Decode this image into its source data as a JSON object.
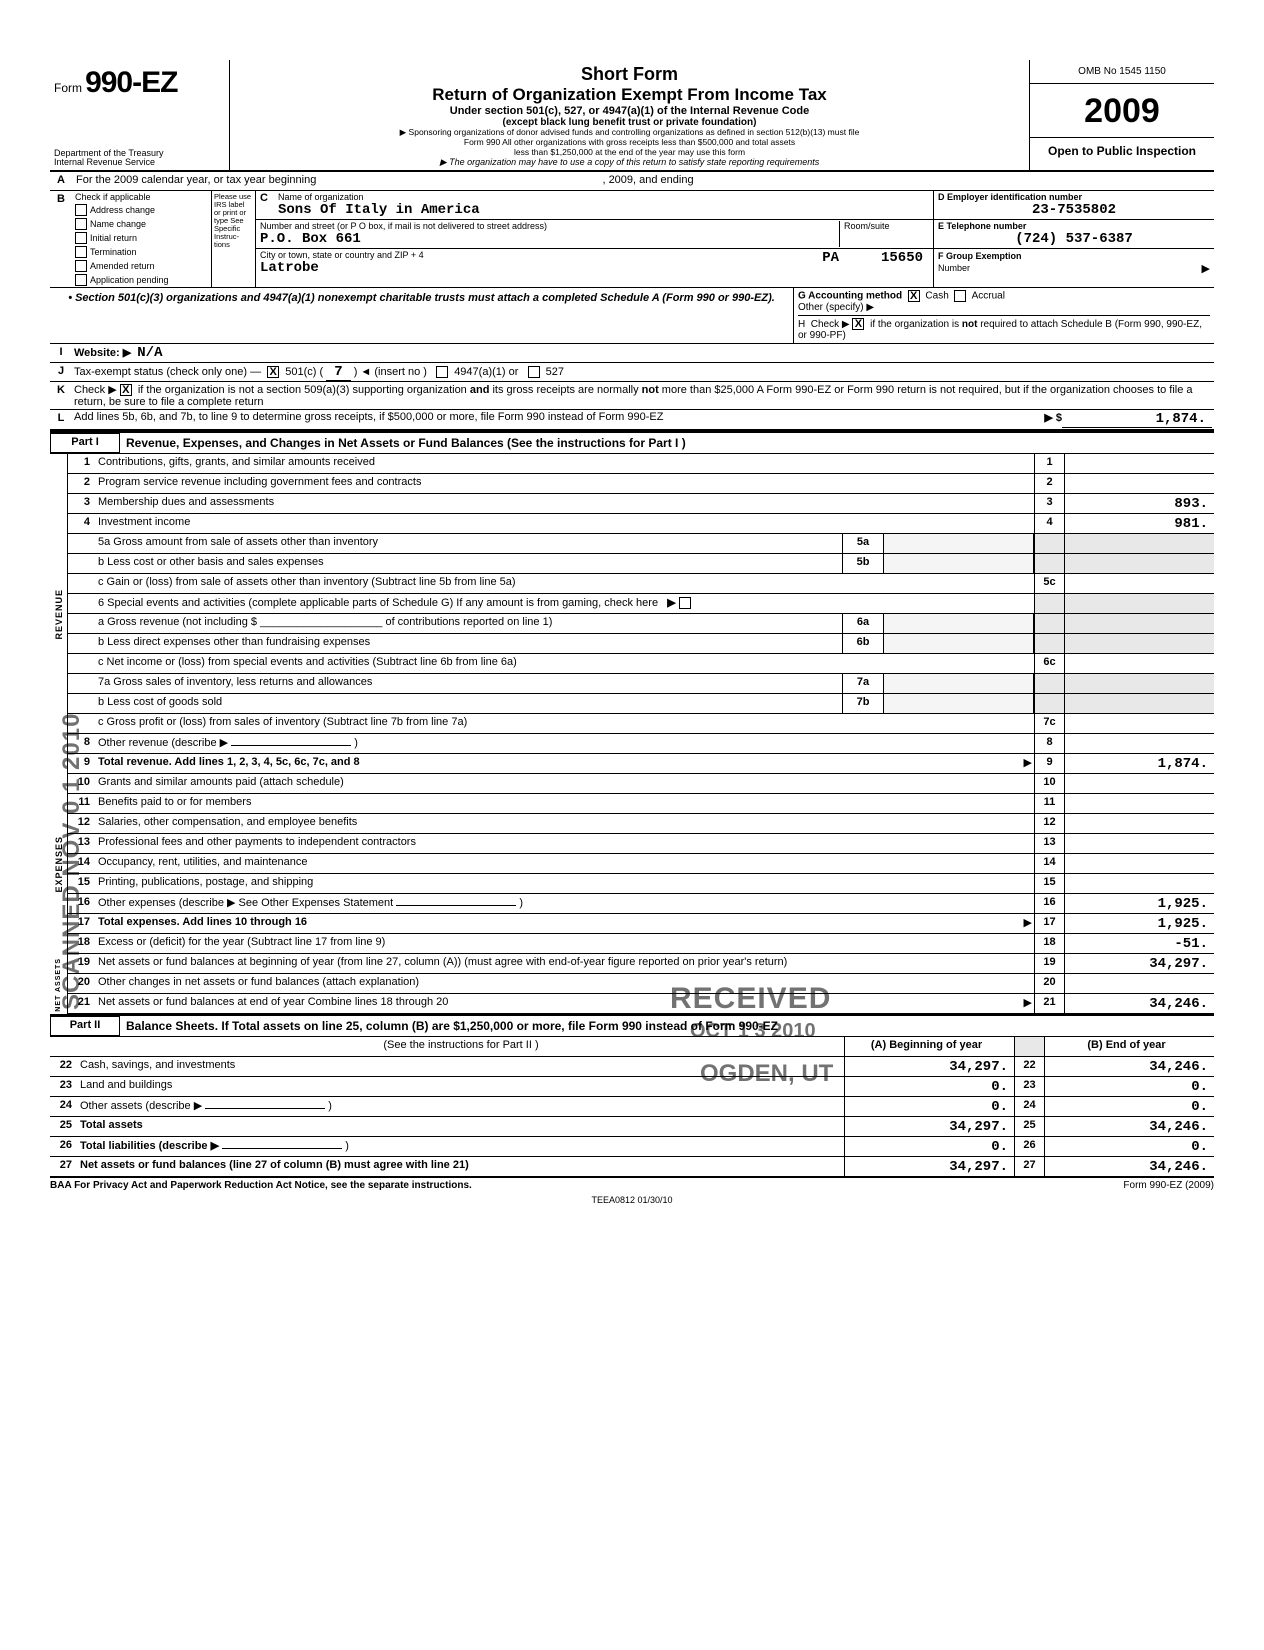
{
  "header": {
    "omb": "OMB No 1545 1150",
    "form_prefix": "Form",
    "form_no": "990-EZ",
    "dept1": "Department of the Treasury",
    "dept2": "Internal Revenue Service",
    "title1": "Short Form",
    "title2": "Return of Organization Exempt From Income Tax",
    "title3": "Under section 501(c), 527, or 4947(a)(1) of the Internal Revenue Code",
    "title4": "(except black lung benefit trust or private foundation)",
    "note1": "▶ Sponsoring organizations of donor advised funds and controlling organizations as defined in section 512(b)(13) must file",
    "note2": "Form 990  All other organizations with gross receipts less than $500,000 and total assets",
    "note3": "less than $1,250,000 at the end of the year may use this form",
    "note4": "▶ The organization may have to use a copy of this return to satisfy state reporting requirements",
    "year": "2009",
    "open": "Open to Public Inspection"
  },
  "lineA": {
    "label": "A",
    "text": "For the 2009 calendar year, or tax year beginning",
    "mid": ", 2009, and ending"
  },
  "blockB": {
    "label": "B",
    "chk_title": "Check if applicable",
    "please": "Please use IRS label or print or type See Specific Instruc-tions",
    "chks": [
      "Address change",
      "Name change",
      "Initial return",
      "Termination",
      "Amended return",
      "Application pending"
    ],
    "c_label": "C",
    "c_name_lab": "Name of organization",
    "c_name": "Sons Of Italy in America",
    "c_addr_lab": "Number and street (or P O  box, if mail is not delivered to street address)",
    "c_room_lab": "Room/suite",
    "c_addr": "P.O. Box 661",
    "c_city_lab": "City or town, state or country  and ZIP + 4",
    "c_city": "Latrobe",
    "c_state": "PA",
    "c_zip": "15650",
    "d_lab": "D  Employer identification number",
    "d_val": "23-7535802",
    "e_lab": "E  Telephone number",
    "e_val": "(724) 537-6387",
    "f_lab": "F  Group Exemption",
    "f_lab2": "Number",
    "f_arrow": "▶"
  },
  "gh": {
    "schedA": "• Section 501(c)(3) organizations and 4947(a)(1) nonexempt charitable trusts must attach a completed Schedule A (Form 990 or 990-EZ).",
    "g_lab": "G  Accounting method",
    "g_cash": "Cash",
    "g_accr": "Accrual",
    "g_other": "Other (specify) ▶",
    "h_text": "H  Check ▶       if the organization is not required to attach Schedule B (Form 990, 990-EZ, or 990-PF)"
  },
  "lineI": {
    "label": "I",
    "text": "Website: ▶",
    "val": "N/A"
  },
  "lineJ": {
    "label": "J",
    "text": "Tax-exempt status (check only one) —",
    "c501": "501(c) (",
    "num": "7",
    "ins": ") ◄ (insert no )",
    "or1": "4947(a)(1) or",
    "or2": "527"
  },
  "lineK": {
    "label": "K",
    "text": "Check ▶       if the organization is not a section 509(a)(3) supporting organization and its gross receipts are normally not more than $25,000   A Form 990-EZ or Form 990 return is not required, but if the organization chooses to file a return, be sure to file a complete return"
  },
  "lineL": {
    "label": "L",
    "text": "Add lines 5b, 6b, and 7b, to line 9 to determine gross receipts, if $500,000 or more, file Form 990 instead of Form 990-EZ",
    "arrow": "▶ $",
    "val": "1,874."
  },
  "part1": {
    "label": "Part I",
    "title": "Revenue, Expenses, and Changes in Net Assets or Fund Balances (See the instructions for Part I )",
    "rev_label": "REVENUE",
    "exp_label": "EXPENSES",
    "na_label": "NET ASSETS",
    "lines": [
      {
        "n": "1",
        "d": "Contributions, gifts, grants, and similar amounts received",
        "b": "1",
        "v": ""
      },
      {
        "n": "2",
        "d": "Program service revenue including government fees and contracts",
        "b": "2",
        "v": ""
      },
      {
        "n": "3",
        "d": "Membership dues and assessments",
        "b": "3",
        "v": "893."
      },
      {
        "n": "4",
        "d": "Investment income",
        "b": "4",
        "v": "981."
      }
    ],
    "l5a": {
      "d": "5a Gross amount from sale of assets other than inventory",
      "b": "5a"
    },
    "l5b": {
      "d": "b Less cost or other basis and sales expenses",
      "b": "5b"
    },
    "l5c": {
      "d": "c Gain or (loss) from sale of assets other than inventory (Subtract line 5b from line 5a)",
      "b": "5c",
      "v": ""
    },
    "l6": {
      "d": "6   Special events and activities (complete applicable parts of Schedule G)  If any amount is from gaming, check here",
      "arrow": "▶"
    },
    "l6a": {
      "d": "a Gross revenue (not including $ ____________________ of contributions reported on line 1)",
      "b": "6a"
    },
    "l6b": {
      "d": "b Less  direct expenses other than fundraising expenses",
      "b": "6b"
    },
    "l6c": {
      "d": "c Net income or (loss) from special events and activities (Subtract line 6b from line 6a)",
      "b": "6c",
      "v": ""
    },
    "l7a": {
      "d": "7a Gross sales of inventory, less returns and allowances",
      "b": "7a"
    },
    "l7b": {
      "d": "b Less cost of goods sold",
      "b": "7b"
    },
    "l7c": {
      "d": "c Gross profit or (loss) from sales of inventory (Subtract line 7b from line 7a)",
      "b": "7c",
      "v": ""
    },
    "l8": {
      "n": "8",
      "d": "Other revenue (describe ▶",
      "paren": ")",
      "b": "8",
      "v": ""
    },
    "l9": {
      "n": "9",
      "d": "Total revenue. Add lines 1, 2, 3, 4, 5c, 6c, 7c, and 8",
      "arrow": "▶",
      "b": "9",
      "v": "1,874."
    },
    "exp": [
      {
        "n": "10",
        "d": "Grants and similar amounts paid (attach schedule)",
        "b": "10",
        "v": ""
      },
      {
        "n": "11",
        "d": "Benefits paid to or for members",
        "b": "11",
        "v": ""
      },
      {
        "n": "12",
        "d": "Salaries, other compensation, and employee benefits",
        "b": "12",
        "v": ""
      },
      {
        "n": "13",
        "d": "Professional fees and other payments to independent contractors",
        "b": "13",
        "v": ""
      },
      {
        "n": "14",
        "d": "Occupancy, rent, utilities, and maintenance",
        "b": "14",
        "v": ""
      },
      {
        "n": "15",
        "d": "Printing, publications, postage, and shipping",
        "b": "15",
        "v": ""
      },
      {
        "n": "16",
        "d": "Other expenses (describe ▶  See Other Expenses Statement",
        "paren": ")",
        "b": "16",
        "v": "1,925."
      }
    ],
    "l17": {
      "n": "17",
      "d": "Total expenses. Add lines 10 through 16",
      "arrow": "▶",
      "b": "17",
      "v": "1,925."
    },
    "l18": {
      "n": "18",
      "d": "Excess or (deficit) for the year (Subtract line 17 from line 9)",
      "b": "18",
      "v": "-51."
    },
    "na": [
      {
        "n": "19",
        "d": "Net assets or fund balances at beginning of year (from line 27, column (A)) (must agree with end-of-year figure reported on prior year's return)",
        "b": "19",
        "v": "34,297."
      },
      {
        "n": "20",
        "d": "Other changes in net assets or fund balances (attach explanation)",
        "b": "20",
        "v": ""
      },
      {
        "n": "21",
        "d": "Net assets or fund balances at end of year  Combine lines 18 through 20",
        "arrow": "▶",
        "b": "21",
        "v": "34,246."
      }
    ]
  },
  "part2": {
    "label": "Part II",
    "title": "Balance Sheets. If Total assets on line 25, column (B) are $1,250,000 or more, file Form 990 instead of Form 990-EZ",
    "sub": "(See the instructions for Part II )",
    "colA": "(A) Beginning of year",
    "colB": "(B) End of year",
    "rows": [
      {
        "n": "22",
        "d": "Cash, savings, and investments",
        "a": "34,297.",
        "b": "22",
        "v": "34,246."
      },
      {
        "n": "23",
        "d": "Land and buildings",
        "a": "0.",
        "b": "23",
        "v": "0."
      },
      {
        "n": "24",
        "d": "Other assets (describe ▶",
        "paren": ")",
        "a": "0.",
        "b": "24",
        "v": "0."
      },
      {
        "n": "25",
        "d": "Total assets",
        "a": "34,297.",
        "b": "25",
        "v": "34,246.",
        "bold": true
      },
      {
        "n": "26",
        "d": "Total liabilities (describe ▶",
        "paren": ")",
        "a": "0.",
        "b": "26",
        "v": "0.",
        "bold": true
      },
      {
        "n": "27",
        "d": "Net assets or fund balances (line 27 of column (B) must agree with line 21)",
        "a": "34,297.",
        "b": "27",
        "v": "34,246.",
        "bold": true
      }
    ]
  },
  "footer": {
    "baa": "BAA  For Privacy Act and Paperwork Reduction Act Notice, see the separate instructions.",
    "mid": "TEEA0812   01/30/10",
    "right": "Form 990-EZ (2009)"
  },
  "stamps": {
    "scanned": "SCANNED NOV 0 1 2010",
    "received": "RECEIVED",
    "date": "OCT 1 3 2010",
    "ogden": "OGDEN, UT"
  }
}
